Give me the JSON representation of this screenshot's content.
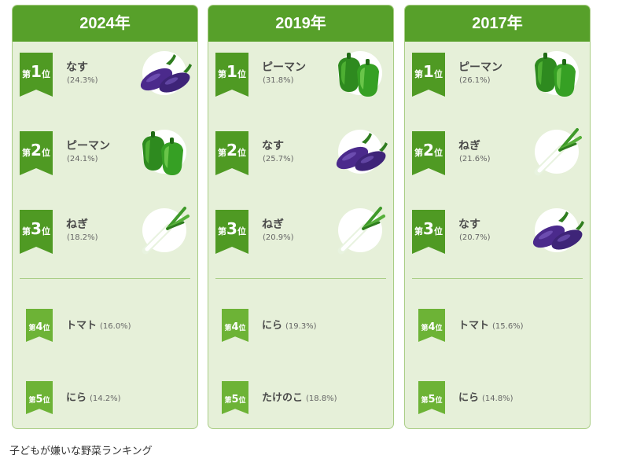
{
  "columns": [
    {
      "year": "2024年",
      "ranks": [
        {
          "kanji": "第",
          "num": "1",
          "suffix": "位",
          "name": "なす",
          "pct": "(24.3%)",
          "icon": "eggplant-icon"
        },
        {
          "kanji": "第",
          "num": "2",
          "suffix": "位",
          "name": "ピーマン",
          "pct": "(24.1%)",
          "icon": "green-pepper-icon"
        },
        {
          "kanji": "第",
          "num": "3",
          "suffix": "位",
          "name": "ねぎ",
          "pct": "(18.2%)",
          "icon": "green-onion-icon"
        },
        {
          "kanji": "第",
          "num": "4",
          "suffix": "位",
          "name": "トマト",
          "pct": "(16.0%)"
        },
        {
          "kanji": "第",
          "num": "5",
          "suffix": "位",
          "name": "にら",
          "pct": "(14.2%)"
        }
      ]
    },
    {
      "year": "2019年",
      "ranks": [
        {
          "kanji": "第",
          "num": "1",
          "suffix": "位",
          "name": "ピーマン",
          "pct": "(31.8%)",
          "icon": "green-pepper-icon"
        },
        {
          "kanji": "第",
          "num": "2",
          "suffix": "位",
          "name": "なす",
          "pct": "(25.7%)",
          "icon": "eggplant-icon"
        },
        {
          "kanji": "第",
          "num": "3",
          "suffix": "位",
          "name": "ねぎ",
          "pct": "(20.9%)",
          "icon": "green-onion-icon"
        },
        {
          "kanji": "第",
          "num": "4",
          "suffix": "位",
          "name": "にら",
          "pct": "(19.3%)"
        },
        {
          "kanji": "第",
          "num": "5",
          "suffix": "位",
          "name": "たけのこ",
          "pct": "(18.8%)"
        }
      ]
    },
    {
      "year": "2017年",
      "ranks": [
        {
          "kanji": "第",
          "num": "1",
          "suffix": "位",
          "name": "ピーマン",
          "pct": "(26.1%)",
          "icon": "green-pepper-icon"
        },
        {
          "kanji": "第",
          "num": "2",
          "suffix": "位",
          "name": "ねぎ",
          "pct": "(21.6%)",
          "icon": "green-onion-icon"
        },
        {
          "kanji": "第",
          "num": "3",
          "suffix": "位",
          "name": "なす",
          "pct": "(20.7%)",
          "icon": "eggplant-icon"
        },
        {
          "kanji": "第",
          "num": "4",
          "suffix": "位",
          "name": "トマト",
          "pct": "(15.6%)"
        },
        {
          "kanji": "第",
          "num": "5",
          "suffix": "位",
          "name": "にら",
          "pct": "(14.8%)"
        }
      ]
    }
  ],
  "caption": "子どもが嫌いな野菜ランキング",
  "colors": {
    "header": "#57a02a",
    "panel": "#e6f0d9",
    "ribbon_top": "#4f9a23",
    "ribbon_low": "#6db336"
  }
}
